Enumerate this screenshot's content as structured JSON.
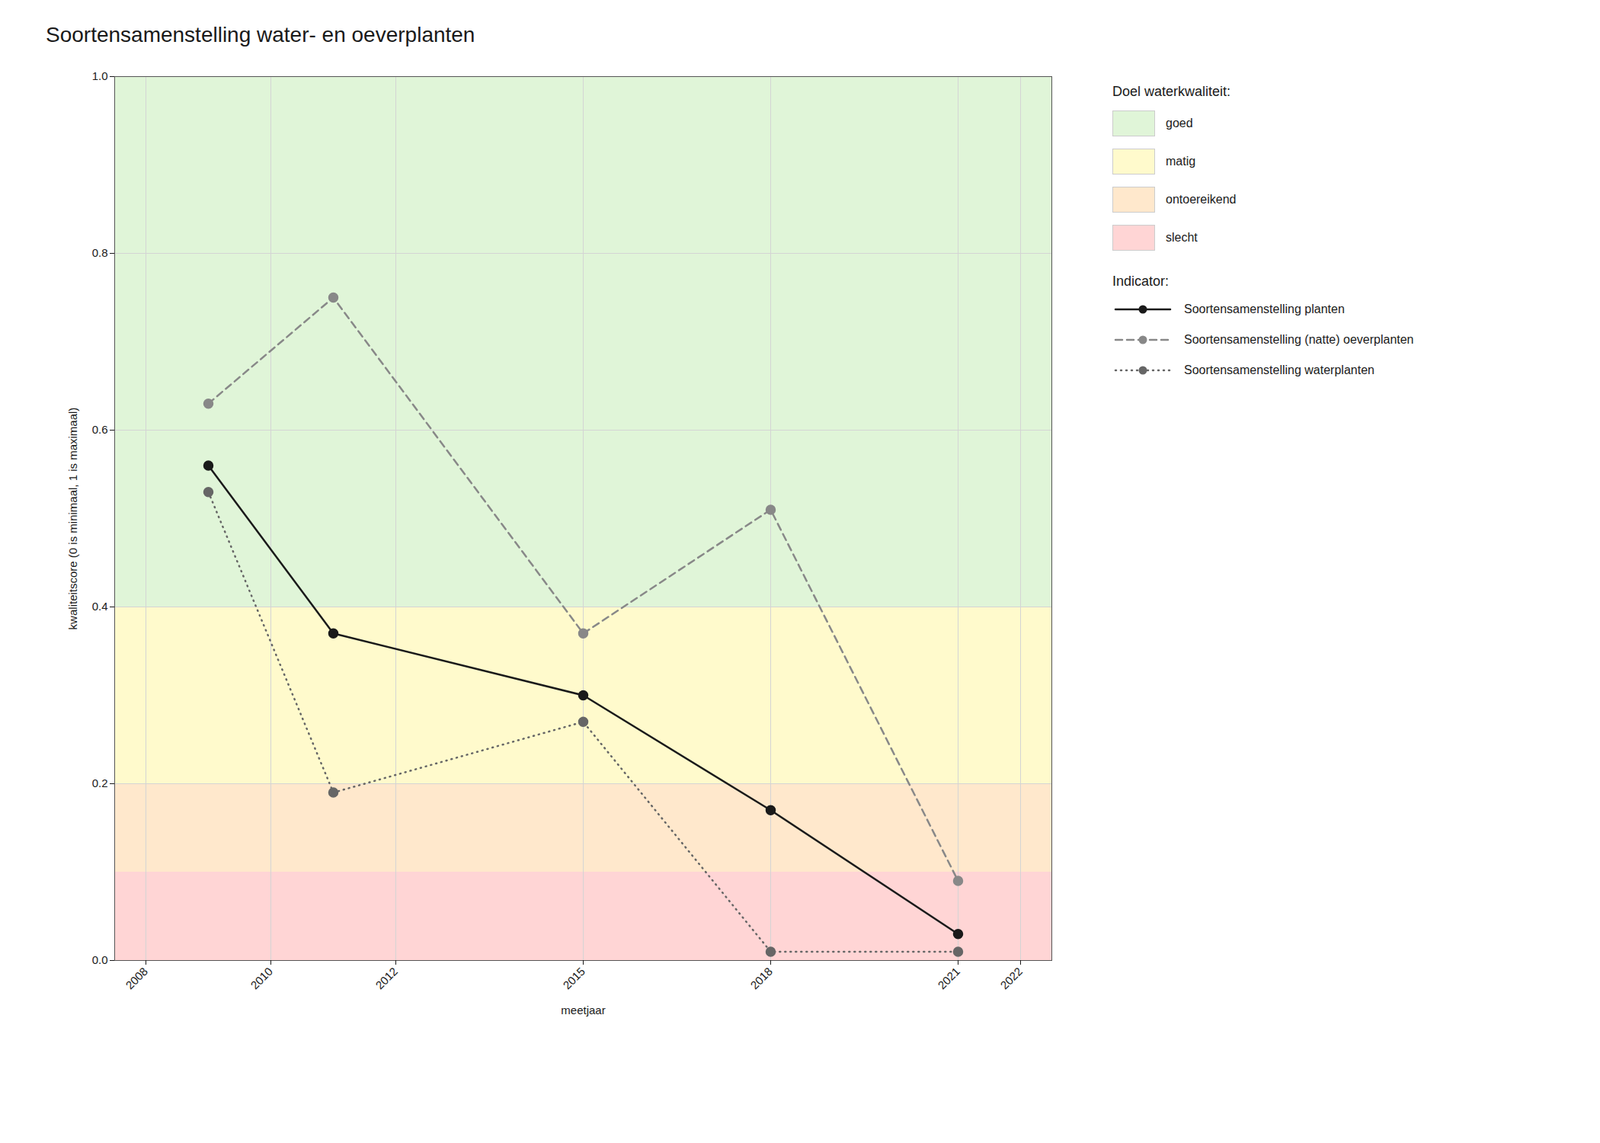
{
  "chart_data": {
    "type": "line",
    "title": "Soortensamenstelling water- en oeverplanten",
    "xlabel": "meetjaar",
    "ylabel": "kwaliteitscore (0 is minimaal, 1 is maximaal)",
    "x": [
      2009,
      2011,
      2015,
      2018,
      2021
    ],
    "series": [
      {
        "name": "Soortensamenstelling planten",
        "color": "#1a1a1a",
        "values": [
          0.56,
          0.37,
          0.3,
          0.17,
          0.03
        ],
        "line_style": "solid",
        "marker": "circle"
      },
      {
        "name": "Soortensamenstelling (natte) oeverplanten",
        "color": "#888888",
        "values": [
          0.63,
          0.75,
          0.37,
          0.51,
          0.09
        ],
        "line_style": "dashed",
        "marker": "circle"
      },
      {
        "name": "Soortensamenstelling waterplanten",
        "color": "#666666",
        "values": [
          0.53,
          0.19,
          0.27,
          0.01,
          0.01
        ],
        "line_style": "dotted",
        "marker": "circle"
      }
    ],
    "xlim": [
      2007.5,
      2022.5
    ],
    "ylim": [
      0.0,
      1.0
    ],
    "xticks": [
      2008,
      2010,
      2012,
      2015,
      2018,
      2021,
      2022
    ],
    "yticks": [
      {
        "value": 0.0,
        "label": "0.0"
      },
      0.2,
      0.4,
      0.6,
      0.8,
      {
        "value": 1.0,
        "label": "1.0"
      }
    ],
    "grid": true,
    "legend": "right",
    "zones_title": "Doel waterkwaliteit:",
    "zones": [
      {
        "label": "goed",
        "ymin": 0.4,
        "ymax": 1.0,
        "color": "#e0f5d8"
      },
      {
        "label": "matig",
        "ymin": 0.2,
        "ymax": 0.4,
        "color": "#fffacc"
      },
      {
        "label": "ontoereikend",
        "ymin": 0.1,
        "ymax": 0.2,
        "color": "#ffe8cc"
      },
      {
        "label": "slecht",
        "ymin": 0.0,
        "ymax": 0.1,
        "color": "#ffd5d5"
      }
    ],
    "series_legend_title": "Indicator:"
  }
}
